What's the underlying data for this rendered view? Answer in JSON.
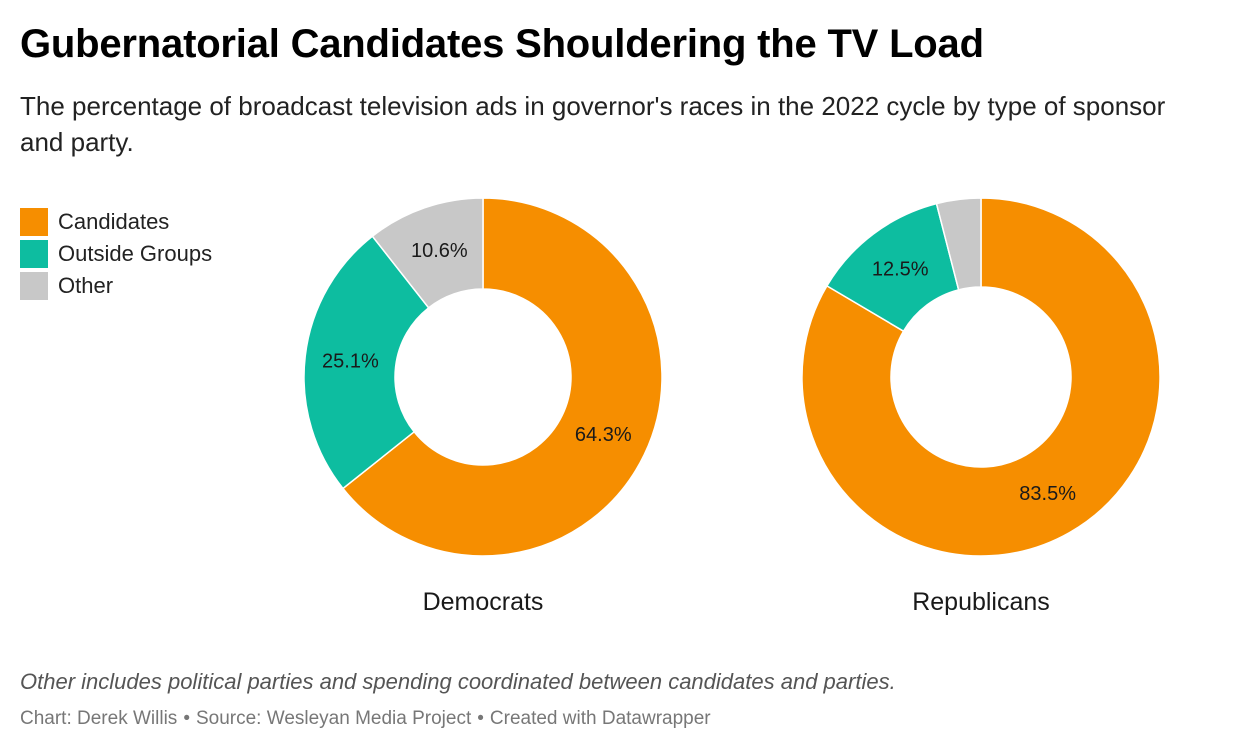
{
  "title": "Gubernatorial Candidates Shouldering the TV Load",
  "subtitle": "The percentage of broadcast television ads in governor's races in the 2022 cycle by type of sponsor and party.",
  "legend": [
    {
      "label": "Candidates",
      "color": "#f68e00"
    },
    {
      "label": "Outside Groups",
      "color": "#0dbda0"
    },
    {
      "label": "Other",
      "color": "#c8c8c8"
    }
  ],
  "chart_data": [
    {
      "type": "pie",
      "label": "Democrats",
      "slices": [
        {
          "category": "Candidates",
          "value": 64.3,
          "label": "64.3%",
          "color": "#f68e00"
        },
        {
          "category": "Outside Groups",
          "value": 25.1,
          "label": "25.1%",
          "color": "#0dbda0"
        },
        {
          "category": "Other",
          "value": 10.6,
          "label": "10.6%",
          "color": "#c8c8c8"
        }
      ]
    },
    {
      "type": "pie",
      "label": "Republicans",
      "slices": [
        {
          "category": "Candidates",
          "value": 83.5,
          "label": "83.5%",
          "color": "#f68e00"
        },
        {
          "category": "Outside Groups",
          "value": 12.5,
          "label": "12.5%",
          "color": "#0dbda0"
        },
        {
          "category": "Other",
          "value": 4.0,
          "label": "",
          "color": "#c8c8c8"
        }
      ]
    }
  ],
  "notes": "Other includes political parties and spending coordinated between candidates and parties.",
  "footer": {
    "chart": "Chart: Derek Willis",
    "source": "Source: Wesleyan Media Project",
    "created": "Created with Datawrapper",
    "separator": "•"
  }
}
